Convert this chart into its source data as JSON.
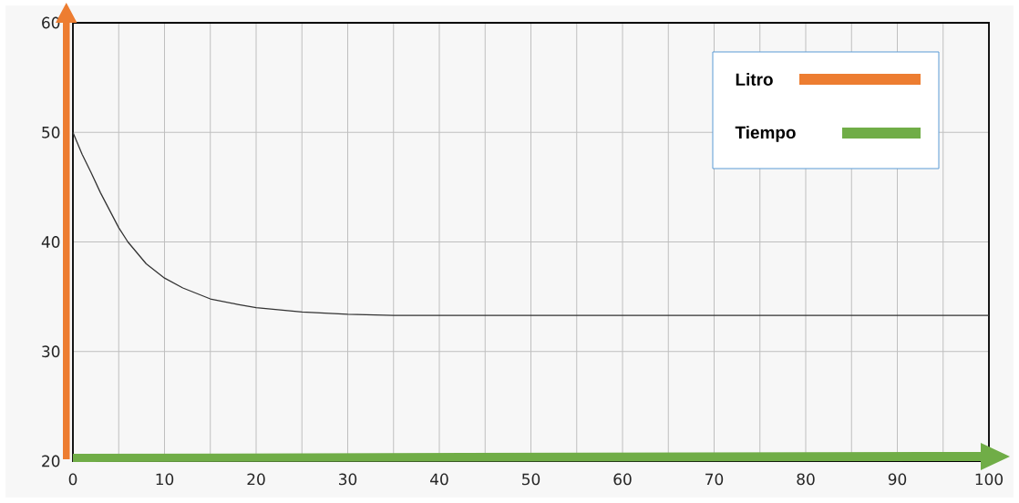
{
  "chart_data": {
    "type": "line",
    "xlabel": "Tiempo",
    "ylabel": "Litro",
    "x": [
      0,
      1,
      2,
      3,
      4,
      5,
      6,
      7,
      8,
      10,
      12,
      15,
      18,
      20,
      25,
      30,
      35,
      40,
      100
    ],
    "series": [
      {
        "color": "#333333",
        "values": [
          50,
          48.0,
          46.3,
          44.5,
          42.9,
          41.3,
          40.0,
          39.0,
          38.0,
          36.7,
          35.8,
          34.8,
          34.3,
          34.0,
          33.6,
          33.4,
          33.3,
          33.3,
          33.3
        ]
      }
    ],
    "xlim": [
      0,
      100
    ],
    "ylim": [
      20,
      60
    ],
    "xticks": [
      0,
      {
        "value": 5,
        "label": null
      },
      10,
      {
        "value": 15,
        "label": null
      },
      20,
      {
        "value": 25,
        "label": null
      },
      30,
      {
        "value": 35,
        "label": null
      },
      40,
      {
        "value": 45,
        "label": null
      },
      50,
      {
        "value": 55,
        "label": null
      },
      60,
      {
        "value": 65,
        "label": null
      },
      70,
      {
        "value": 75,
        "label": null
      },
      80,
      {
        "value": 85,
        "label": null
      },
      90,
      {
        "value": 95,
        "label": null
      },
      100
    ],
    "yticks": [
      20,
      30,
      40,
      50,
      60
    ],
    "grid": true,
    "marker": "none",
    "line_style": "solid"
  }
}
